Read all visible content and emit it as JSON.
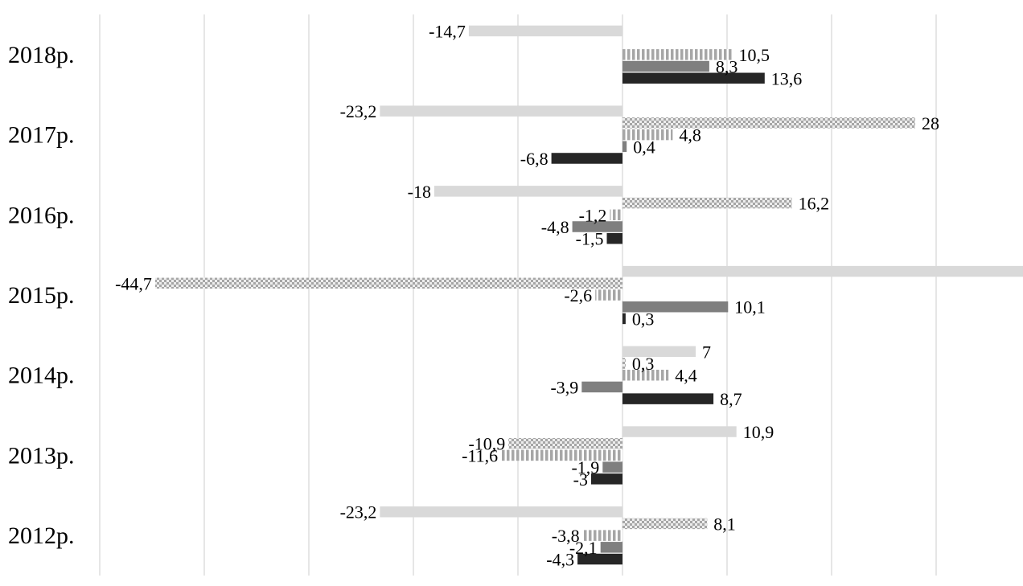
{
  "chart_data": {
    "type": "bar",
    "orientation": "horizontal",
    "categories": [
      "2018р.",
      "2017р.",
      "2016р.",
      "2015р.",
      "2014р.",
      "2013р.",
      "2012р."
    ],
    "series": [
      {
        "style": "light-solid",
        "color": "#d9d9d9",
        "values": [
          -14.7,
          -23.2,
          -18,
          40,
          7,
          10.9,
          -23.2
        ],
        "labels": [
          "-14,7",
          "-23,2",
          "-18",
          "",
          "7",
          "10,9",
          "-23,2"
        ]
      },
      {
        "style": "dotted",
        "color": "#bfbfbf",
        "values": [
          null,
          28,
          16.2,
          -44.7,
          0.3,
          -10.9,
          8.1
        ],
        "labels": [
          "",
          "28",
          "16,2",
          "-44,7",
          "0,3",
          "-10,9",
          "8,1"
        ]
      },
      {
        "style": "vertical-stripes",
        "color": "#a6a6a6",
        "values": [
          10.5,
          4.8,
          -1.2,
          -2.6,
          4.4,
          -11.6,
          -3.8
        ],
        "labels": [
          "10,5",
          "4,8",
          "-1,2",
          "-2,6",
          "4,4",
          "-11,6",
          "-3,8"
        ]
      },
      {
        "style": "medium-solid",
        "color": "#7f7f7f",
        "values": [
          8.3,
          0.4,
          -4.8,
          10.1,
          -3.9,
          -1.9,
          -2.1
        ],
        "labels": [
          "8,3",
          "0,4",
          "-4,8",
          "10,1",
          "-3,9",
          "-1,9",
          "-2,1"
        ]
      },
      {
        "style": "dark-solid",
        "color": "#262626",
        "values": [
          13.6,
          -6.8,
          -1.5,
          0.3,
          8.7,
          -3,
          -4.3
        ],
        "labels": [
          "13,6",
          "-6,8",
          "-1,5",
          "0,3",
          "8,7",
          "-3",
          "-4,3"
        ]
      }
    ],
    "xlim": [
      -50,
      38
    ],
    "x_tick_step": 10,
    "grid": "vertical",
    "legend": "none"
  }
}
